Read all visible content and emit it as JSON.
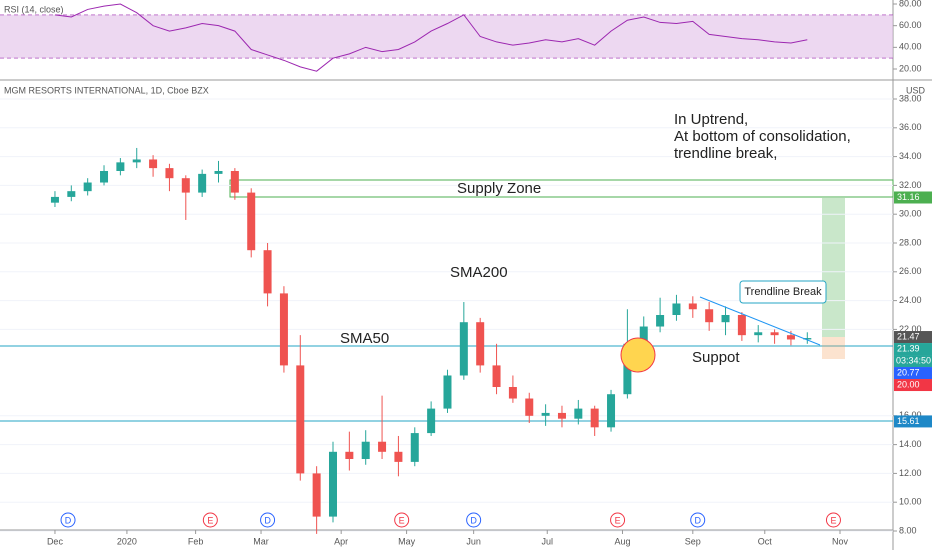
{
  "chart_data": [
    {
      "type": "candlestick",
      "title": "MGM RESORTS INTERNATIONAL, 1D, Cboe BZX",
      "currency": "USD",
      "x": [
        0,
        1,
        2,
        3,
        4,
        5,
        6,
        7,
        8,
        9,
        10,
        11,
        12,
        13,
        14,
        15,
        16,
        17,
        18,
        19,
        20,
        21,
        22,
        23,
        24,
        25,
        26,
        27,
        28,
        29,
        30,
        31,
        32,
        33,
        34,
        35,
        36,
        37,
        38,
        39,
        40,
        41,
        42,
        43,
        44,
        45,
        46
      ],
      "open": [
        30.8,
        31.2,
        31.6,
        32.2,
        33.0,
        33.6,
        33.8,
        33.2,
        32.5,
        31.5,
        32.8,
        33.0,
        31.5,
        27.5,
        24.5,
        19.5,
        12.0,
        9.0,
        13.5,
        13.0,
        14.2,
        13.5,
        12.8,
        14.8,
        16.5,
        18.8,
        22.5,
        19.5,
        18.0,
        17.2,
        16.0,
        16.2,
        15.8,
        16.5,
        15.2,
        17.5,
        21.0,
        22.2,
        23.0,
        23.8,
        23.4,
        22.5,
        23.0,
        21.6,
        21.8,
        21.6,
        21.3
      ],
      "high": [
        31.6,
        32.0,
        32.5,
        33.4,
        33.9,
        34.6,
        34.1,
        33.5,
        32.7,
        33.1,
        33.7,
        33.2,
        31.8,
        28.0,
        25.0,
        21.6,
        12.5,
        14.2,
        14.9,
        15.0,
        17.4,
        14.6,
        15.2,
        17.0,
        19.2,
        23.9,
        22.8,
        21.0,
        18.8,
        17.6,
        16.8,
        16.7,
        17.1,
        16.7,
        17.8,
        23.4,
        22.9,
        24.2,
        24.4,
        24.3,
        23.9,
        23.6,
        23.2,
        22.3,
        22.0,
        21.9,
        21.8
      ],
      "low": [
        30.5,
        30.9,
        31.3,
        32.0,
        32.7,
        33.2,
        32.6,
        31.6,
        29.6,
        31.2,
        32.2,
        31.0,
        27.0,
        23.6,
        19.0,
        11.5,
        7.8,
        8.6,
        12.2,
        12.6,
        13.0,
        11.8,
        12.5,
        14.6,
        16.2,
        18.5,
        19.0,
        17.5,
        16.9,
        15.5,
        15.3,
        15.2,
        15.4,
        14.6,
        14.9,
        17.2,
        20.6,
        21.8,
        22.6,
        22.8,
        21.9,
        21.6,
        21.2,
        21.1,
        21.0,
        20.9,
        21.0
      ],
      "close": [
        31.2,
        31.6,
        32.2,
        33.0,
        33.6,
        33.8,
        33.2,
        32.5,
        31.5,
        32.8,
        33.0,
        31.5,
        27.5,
        24.5,
        19.5,
        12.0,
        9.0,
        13.5,
        13.0,
        14.2,
        13.5,
        12.8,
        14.8,
        16.5,
        18.8,
        22.5,
        19.5,
        18.0,
        17.2,
        16.0,
        16.2,
        15.8,
        16.5,
        15.2,
        17.5,
        21.0,
        22.2,
        23.0,
        23.8,
        23.4,
        22.5,
        23.0,
        21.6,
        21.8,
        21.6,
        21.3,
        21.4
      ],
      "up_color": "#26a69a",
      "down_color": "#ef5350",
      "xlim": [
        -3.36,
        51.24
      ],
      "xticks": [
        {
          "value": 0,
          "label": "Dec"
        },
        {
          "value": 4.4,
          "label": "2020"
        },
        {
          "value": 8.6,
          "label": "Feb"
        },
        {
          "value": 12.6,
          "label": "Mar"
        },
        {
          "value": 17.5,
          "label": "Apr"
        },
        {
          "value": 21.5,
          "label": "May"
        },
        {
          "value": 25.6,
          "label": "Jun"
        },
        {
          "value": 30.1,
          "label": "Jul"
        },
        {
          "value": 34.7,
          "label": "Aug"
        },
        {
          "value": 39,
          "label": "Sep"
        },
        {
          "value": 43.4,
          "label": "Oct"
        },
        {
          "value": 48,
          "label": "Nov"
        }
      ],
      "ylim": [
        8.07,
        39.18
      ],
      "yticks": [
        {
          "value": 8,
          "label": "8.00"
        },
        {
          "value": 10,
          "label": "10.00"
        },
        {
          "value": 12,
          "label": "12.00"
        },
        {
          "value": 14,
          "label": "14.00"
        },
        {
          "value": 16,
          "label": "16.00"
        },
        {
          "value": 22,
          "label": "22.00"
        },
        {
          "value": 24,
          "label": "24.00"
        },
        {
          "value": 26,
          "label": "26.00"
        },
        {
          "value": 28,
          "label": "28.00"
        },
        {
          "value": 30,
          "label": "30.00"
        },
        {
          "value": 32,
          "label": "32.00"
        },
        {
          "value": 34,
          "label": "34.00"
        },
        {
          "value": 36,
          "label": "36.00"
        },
        {
          "value": 38,
          "label": "38.00"
        }
      ],
      "price_tags": [
        {
          "value": 31.16,
          "label": "31.16",
          "color": "#4caf50"
        },
        {
          "value": 21.47,
          "label": "21.47",
          "color": "#555555"
        },
        {
          "value": 21.39,
          "label": "21.39",
          "color": "#26a69a"
        },
        {
          "value": 20.77,
          "label": "20.77",
          "color": "#2962ff"
        },
        {
          "value": 20.0,
          "label": "20.00",
          "color": "#f23645"
        },
        {
          "value": 15.61,
          "label": "15.61",
          "color": "#1e88c7"
        }
      ],
      "countdown": "03:34:50",
      "events": [
        {
          "x": 0.8,
          "label": "D",
          "color": "#2962ff"
        },
        {
          "x": 9.5,
          "label": "E",
          "color": "#f23645"
        },
        {
          "x": 13,
          "label": "D",
          "color": "#2962ff"
        },
        {
          "x": 21.2,
          "label": "E",
          "color": "#f23645"
        },
        {
          "x": 25.6,
          "label": "D",
          "color": "#2962ff"
        },
        {
          "x": 34.4,
          "label": "E",
          "color": "#f23645"
        },
        {
          "x": 39.3,
          "label": "D",
          "color": "#2962ff"
        },
        {
          "x": 47.6,
          "label": "E",
          "color": "#f23645"
        }
      ],
      "annotations": {
        "note": [
          "In Uptrend,",
          "At bottom of consolidation,",
          "trendline break,"
        ],
        "supply": "Supply Zone",
        "sma200": "SMA200",
        "sma50": "SMA50",
        "support": "Suppot",
        "trendline": "Trendline Break"
      }
    },
    {
      "type": "line",
      "title": "RSI (14, close)",
      "color": "#9c27b0",
      "x": [
        0,
        1,
        2,
        3,
        4,
        5,
        6,
        7,
        8,
        9,
        10,
        11,
        12,
        13,
        14,
        15,
        16,
        17,
        18,
        19,
        20,
        21,
        22,
        23,
        24,
        25,
        26,
        27,
        28,
        29,
        30,
        31,
        32,
        33,
        34,
        35,
        36,
        37,
        38,
        39,
        40,
        41,
        42,
        43,
        44,
        45,
        46
      ],
      "values": [
        70,
        68,
        75,
        78,
        80,
        72,
        60,
        55,
        58,
        62,
        60,
        55,
        38,
        33,
        28,
        22,
        18,
        30,
        34,
        40,
        36,
        38,
        45,
        55,
        62,
        70,
        50,
        45,
        42,
        44,
        47,
        45,
        48,
        42,
        55,
        65,
        68,
        63,
        62,
        64,
        52,
        50,
        48,
        47,
        45,
        44,
        47
      ],
      "band": [
        30,
        70
      ],
      "band_color": "#e1bee7",
      "xlim": [
        -3.36,
        51.24
      ],
      "ylim": [
        11.7,
        83.7
      ],
      "yticks": [
        {
          "value": 20,
          "label": "20.00"
        },
        {
          "value": 40,
          "label": "40.00"
        },
        {
          "value": 60,
          "label": "60.00"
        },
        {
          "value": 80,
          "label": "80.00"
        }
      ]
    }
  ]
}
